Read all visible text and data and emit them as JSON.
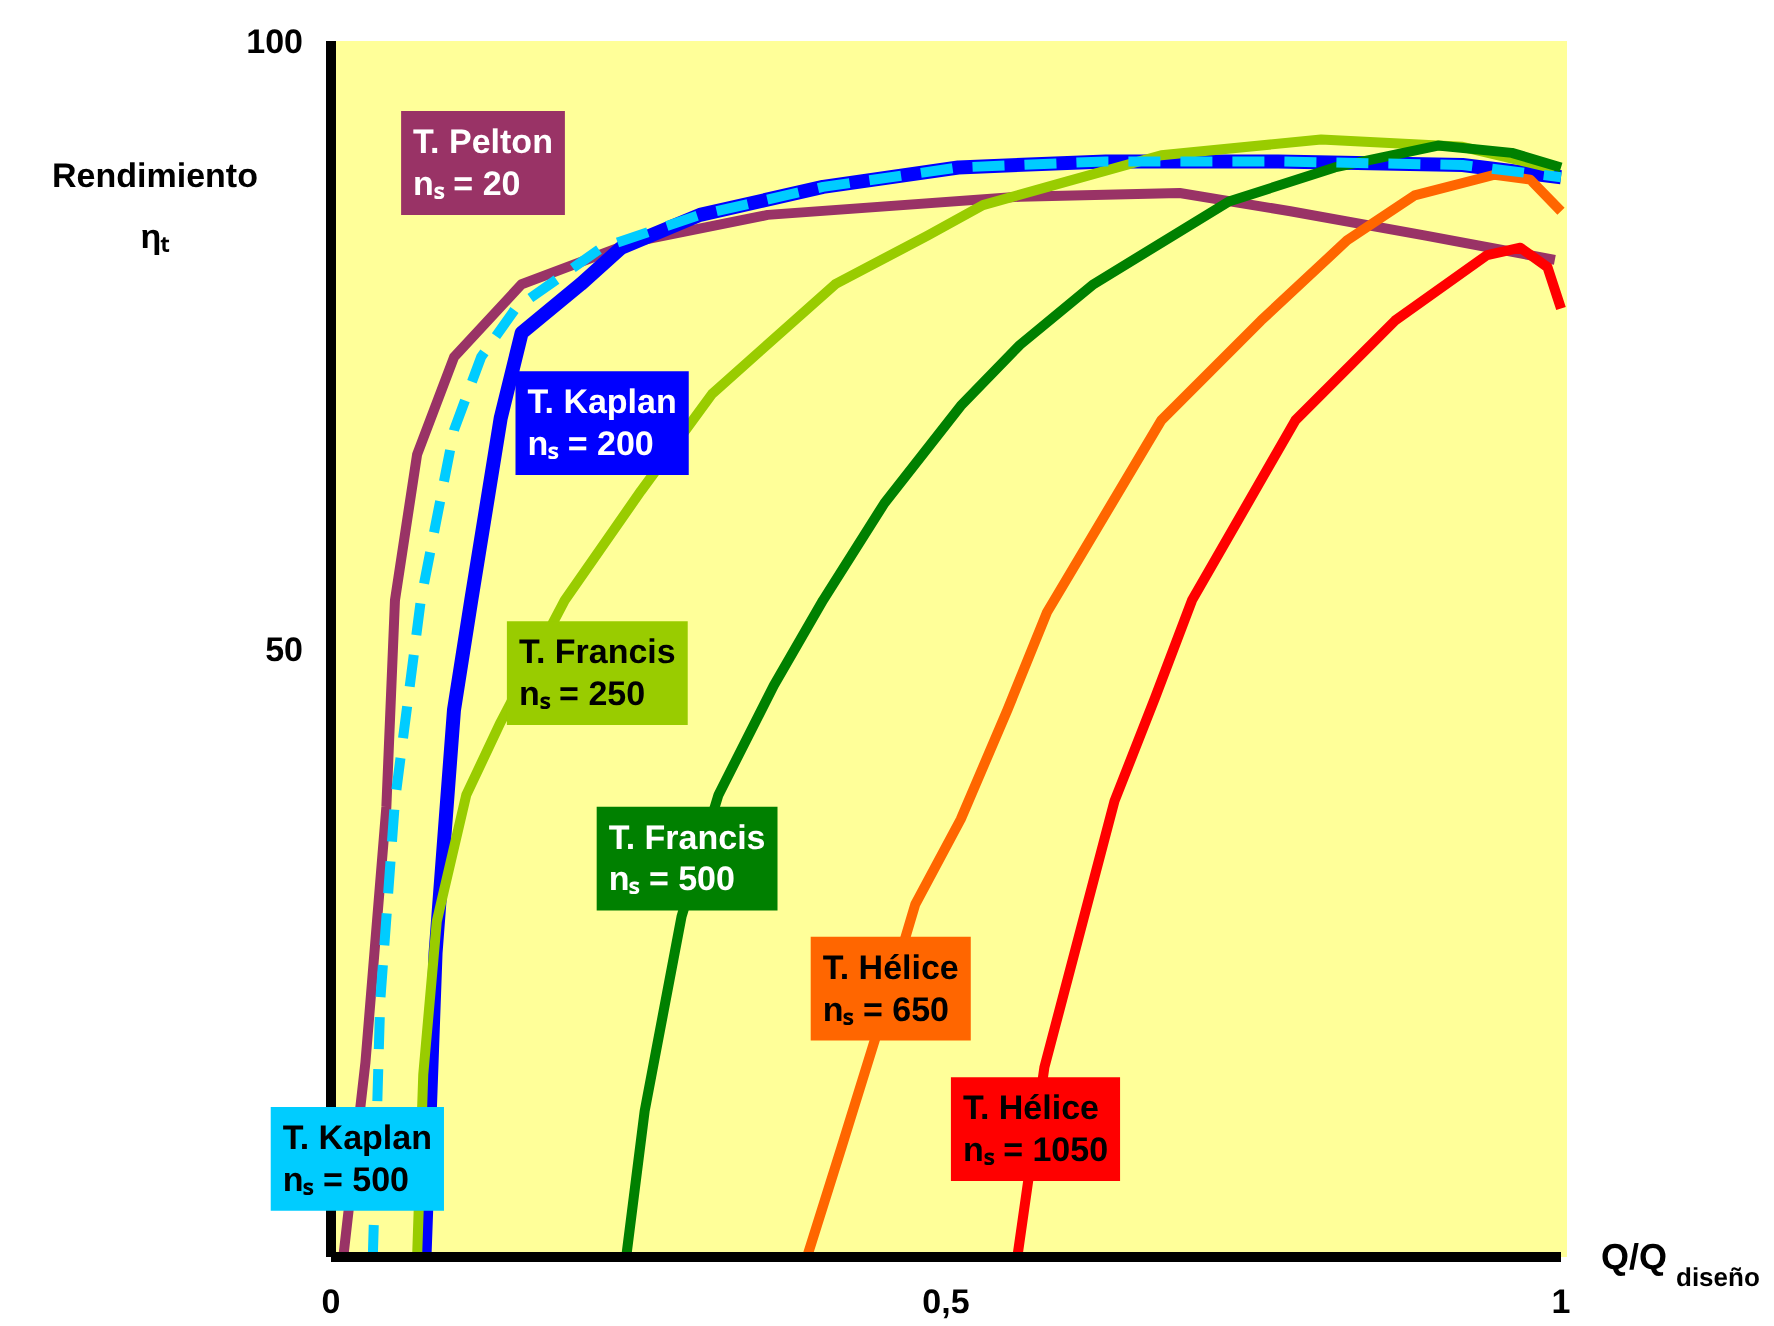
{
  "chart_data": {
    "type": "line",
    "xlabel": "Q/Q$_{diseño}$",
    "ylabel": "Rendimiento\nηₜ",
    "xlim": [
      0,
      1
    ],
    "ylim": [
      0,
      100
    ],
    "xticks": [
      0,
      {
        "value": 0.5,
        "label": "0,5"
      },
      1
    ],
    "yticks": [
      50,
      100
    ],
    "grid": false,
    "marker": "none",
    "series": [
      {
        "name": "T. Pelton\nnₛ = 20",
        "color": "#993366",
        "x": [
          0.01,
          0.028,
          0.045,
          0.052,
          0.07,
          0.1,
          0.155,
          0.247,
          0.355,
          0.56,
          0.69,
          0.78,
          0.89,
          0.995
        ],
        "values": [
          0,
          16,
          37,
          54,
          66,
          74,
          80,
          83.5,
          85.7,
          87.2,
          87.5,
          86,
          84,
          82
        ]
      },
      {
        "name": "T. Kaplan\nnₛ = 200",
        "color": "#0000ff",
        "x": [
          0.076,
          0.085,
          0.1,
          0.114,
          0.138,
          0.155,
          0.203,
          0.236,
          0.3,
          0.4,
          0.51,
          0.63,
          0.77,
          0.92,
          1.0
        ],
        "values": [
          0,
          25,
          45,
          54,
          69,
          76,
          80,
          83,
          85.7,
          88,
          89.6,
          90.1,
          90.1,
          89.8,
          88.8
        ]
      },
      {
        "name": "T. Kaplan\nnₛ = 500",
        "color": "#00ccff",
        "line_style": "dashed",
        "x": [
          0.034,
          0.04,
          0.052,
          0.073,
          0.1,
          0.122,
          0.15,
          0.22,
          0.3,
          0.4,
          0.51,
          0.63,
          0.77,
          0.92,
          1.0
        ],
        "values": [
          0,
          21,
          37.5,
          54,
          68,
          74,
          78,
          83,
          85.7,
          88,
          89.6,
          90.1,
          90.1,
          89.8,
          88.8
        ]
      },
      {
        "name": "T. Francis\nnₛ = 250",
        "color": "#99cc00",
        "x": [
          0.07,
          0.075,
          0.086,
          0.11,
          0.138,
          0.19,
          0.252,
          0.31,
          0.41,
          0.485,
          0.53,
          0.6,
          0.675,
          0.805,
          0.92,
          0.995
        ],
        "values": [
          0,
          15,
          27.6,
          38,
          44,
          54,
          63,
          71,
          80,
          84,
          86.5,
          88.5,
          90.6,
          91.9,
          91.3,
          89.5
        ]
      },
      {
        "name": "T. Francis\nnₛ = 500",
        "color": "#008000",
        "x": [
          0.24,
          0.255,
          0.285,
          0.315,
          0.36,
          0.4,
          0.45,
          0.512,
          0.56,
          0.62,
          0.73,
          0.816,
          0.9,
          0.96,
          1.0
        ],
        "values": [
          0,
          12,
          28,
          38,
          47,
          54,
          62,
          70,
          75,
          80,
          86.8,
          89.6,
          91.4,
          90.8,
          89.6
        ]
      },
      {
        "name": "T. Hélice\nnₛ = 650",
        "color": "#ff6600",
        "x": [
          0.387,
          0.415,
          0.442,
          0.475,
          0.512,
          0.55,
          0.582,
          0.675,
          0.756,
          0.826,
          0.881,
          0.946,
          0.975,
          1.0
        ],
        "values": [
          0,
          9,
          17.8,
          29,
          36,
          45,
          53,
          68.8,
          77,
          83.6,
          87.3,
          89,
          88.6,
          86
        ]
      },
      {
        "name": "T. Hélice\nnₛ = 1050",
        "color": "#ff0000",
        "x": [
          0.558,
          0.58,
          0.637,
          0.67,
          0.7,
          0.784,
          0.865,
          0.94,
          0.967,
          0.989,
          1.0
        ],
        "values": [
          0,
          15.6,
          37.5,
          46,
          54,
          68.8,
          77,
          82.4,
          83,
          81.4,
          78
        ]
      }
    ]
  }
}
